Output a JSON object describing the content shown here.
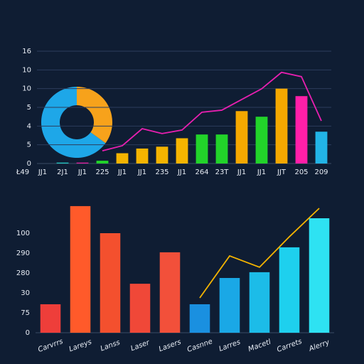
{
  "chart_data": [
    {
      "type": "pie",
      "values": [
        35,
        65
      ],
      "colors": [
        "#f7a21b",
        "#1ea7e8"
      ],
      "donut": true
    },
    {
      "type": "bar",
      "categories": [
        "Ł49",
        "JJ1",
        "2J1",
        "JJ1",
        "225",
        "JJ1",
        "JJ1",
        "235",
        "JJ1",
        "264",
        "23T",
        "JJ1",
        "JJ1",
        "JJT",
        "205",
        "209"
      ],
      "values": [
        null,
        null,
        0.05,
        0.05,
        0.15,
        0.55,
        0.8,
        0.9,
        1.35,
        1.55,
        1.55,
        2.8,
        2.5,
        4.0,
        3.6,
        1.7
      ],
      "colors": [
        "#f5b400",
        "#f5b400",
        "#22c6c0",
        "#e01fa0",
        "#22d32a",
        "#f5b400",
        "#f5b400",
        "#f5b400",
        "#f5b400",
        "#22d32a",
        "#22d32a",
        "#f5a800",
        "#22d32a",
        "#f5a800",
        "#ff1fa8",
        "#22b4e6"
      ],
      "line": {
        "values": [
          null,
          null,
          null,
          null,
          0.68,
          0.95,
          1.86,
          1.6,
          1.79,
          2.74,
          2.85,
          3.42,
          3.99,
          4.87,
          4.64,
          2.28
        ],
        "color": "#e81fb0"
      },
      "ylim": [
        0,
        6
      ],
      "yticks": [
        0,
        {
          "value": 1,
          "label": "5"
        },
        {
          "value": 2,
          "label": "4"
        },
        {
          "value": 3,
          "label": "5"
        },
        {
          "value": 4,
          "label": "10"
        },
        {
          "value": 5,
          "label": "10"
        },
        {
          "value": 6,
          "label": "16"
        }
      ],
      "grid": true
    },
    {
      "type": "bar",
      "categories": [
        "Carvrrs",
        "Lareys",
        "Lanss",
        "Laser",
        "Lasers",
        "Casnne",
        "Larres",
        "Macetl",
        "Carrets",
        "Alerry"
      ],
      "values": [
        1.43,
        6.36,
        5.0,
        2.46,
        4.04,
        1.43,
        2.75,
        3.04,
        4.29,
        5.75
      ],
      "colors": [
        "#ee3e3a",
        "#ff5a2a",
        "#f4502e",
        "#f04838",
        "#f2503a",
        "#1a90e0",
        "#1aa8e6",
        "#1cbce8",
        "#1ed0ee",
        "#2ee2f2"
      ],
      "line": {
        "values": [
          null,
          null,
          null,
          null,
          null,
          1.75,
          3.86,
          3.29,
          4.82,
          6.25
        ],
        "color": "#f5b400"
      },
      "ylim": [
        0,
        6.5
      ],
      "yticks": [
        0,
        {
          "value": 1,
          "label": "75"
        },
        {
          "value": 2,
          "label": "30"
        },
        {
          "value": 3,
          "label": "280"
        },
        {
          "value": 4,
          "label": "290"
        },
        {
          "value": 5,
          "label": "100"
        }
      ],
      "grid": false
    }
  ]
}
